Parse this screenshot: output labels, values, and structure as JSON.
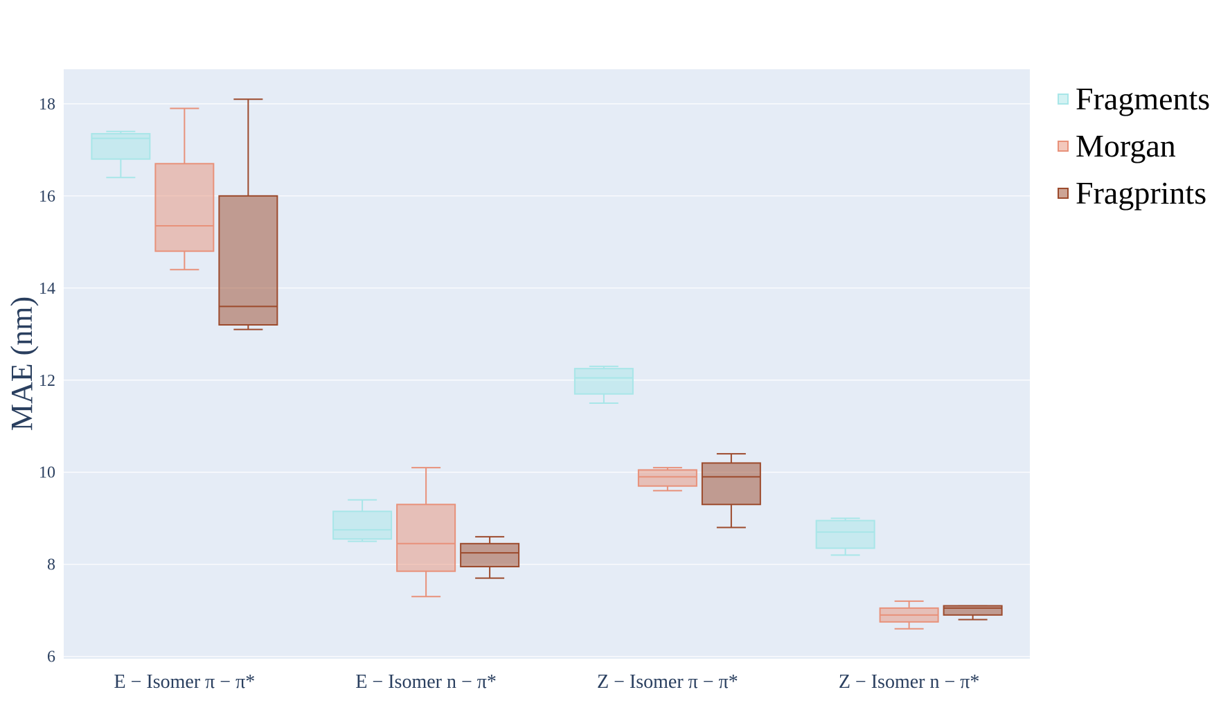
{
  "chart_data": {
    "type": "box",
    "title": "",
    "xlabel": "",
    "ylabel": "MAE (nm)",
    "ylim": [
      5.95,
      18.75
    ],
    "yticks": [
      6,
      8,
      10,
      12,
      14,
      16,
      18
    ],
    "grid": true,
    "legend_position": "right",
    "categories": [
      "E − Isomer π − π*",
      "E − Isomer n − π*",
      "Z − Isomer π − π*",
      "Z − Isomer n − π*"
    ],
    "series": [
      {
        "name": "Fragments",
        "color": "#a8e6e8",
        "boxes": [
          {
            "min": 16.4,
            "q1": 16.8,
            "median": 17.25,
            "q3": 17.35,
            "max": 17.4
          },
          {
            "min": 8.5,
            "q1": 8.55,
            "median": 8.75,
            "q3": 9.15,
            "max": 9.4
          },
          {
            "min": 11.5,
            "q1": 11.7,
            "median": 12.05,
            "q3": 12.25,
            "max": 12.3
          },
          {
            "min": 8.2,
            "q1": 8.35,
            "median": 8.7,
            "q3": 8.95,
            "max": 9.0
          }
        ]
      },
      {
        "name": "Morgan",
        "color": "#e8917a",
        "boxes": [
          {
            "min": 14.4,
            "q1": 14.8,
            "median": 15.35,
            "q3": 16.7,
            "max": 17.9
          },
          {
            "min": 7.3,
            "q1": 7.85,
            "median": 8.45,
            "q3": 9.3,
            "max": 10.1
          },
          {
            "min": 9.6,
            "q1": 9.7,
            "median": 9.9,
            "q3": 10.05,
            "max": 10.1
          },
          {
            "min": 6.6,
            "q1": 6.75,
            "median": 6.9,
            "q3": 7.05,
            "max": 7.2
          }
        ]
      },
      {
        "name": "Fragprints",
        "color": "#9c4a2c",
        "boxes": [
          {
            "min": 13.1,
            "q1": 13.2,
            "median": 13.6,
            "q3": 16.0,
            "max": 18.1
          },
          {
            "min": 7.7,
            "q1": 7.95,
            "median": 8.25,
            "q3": 8.45,
            "max": 8.6
          },
          {
            "min": 8.8,
            "q1": 9.3,
            "median": 9.9,
            "q3": 10.2,
            "max": 10.4
          },
          {
            "min": 6.8,
            "q1": 6.9,
            "median": 7.05,
            "q3": 7.1,
            "max": 7.1
          }
        ]
      }
    ]
  },
  "colors": {
    "plot_bg": "#e5ecf6",
    "grid": "#ffffff",
    "axis_text": "#2a3f5f"
  }
}
